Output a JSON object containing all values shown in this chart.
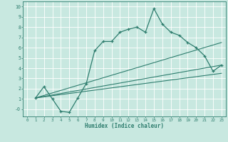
{
  "bg_color": "#c8e8e0",
  "grid_color": "#ffffff",
  "line_color": "#2e7d6e",
  "xlabel": "Humidex (Indice chaleur)",
  "xlim": [
    -0.5,
    23.5
  ],
  "ylim": [
    -0.7,
    10.5
  ],
  "xticks": [
    0,
    1,
    2,
    3,
    4,
    5,
    6,
    7,
    8,
    9,
    10,
    11,
    12,
    13,
    14,
    15,
    16,
    17,
    18,
    19,
    20,
    21,
    22,
    23
  ],
  "yticks": [
    0,
    1,
    2,
    3,
    4,
    5,
    6,
    7,
    8,
    9,
    10
  ],
  "ytick_labels": [
    "-0",
    "1",
    "2",
    "3",
    "4",
    "5",
    "6",
    "7",
    "8",
    "9",
    "10"
  ],
  "line1_x": [
    1,
    2,
    3,
    4,
    5,
    6,
    7,
    8,
    9,
    10,
    11,
    12,
    13,
    14,
    15,
    16,
    17,
    18,
    19,
    20,
    21,
    22,
    23
  ],
  "line1_y": [
    1.1,
    2.2,
    1.0,
    -0.2,
    -0.3,
    1.1,
    2.5,
    5.7,
    6.6,
    6.6,
    7.5,
    7.8,
    8.0,
    7.5,
    9.8,
    8.3,
    7.5,
    7.2,
    6.5,
    6.0,
    5.2,
    3.7,
    4.3
  ],
  "line2_x": [
    1,
    23
  ],
  "line2_y": [
    1.1,
    6.5
  ],
  "line3_x": [
    1,
    23
  ],
  "line3_y": [
    1.1,
    4.3
  ],
  "line4_x": [
    1,
    23
  ],
  "line4_y": [
    1.1,
    3.5
  ],
  "marker_style": "+"
}
